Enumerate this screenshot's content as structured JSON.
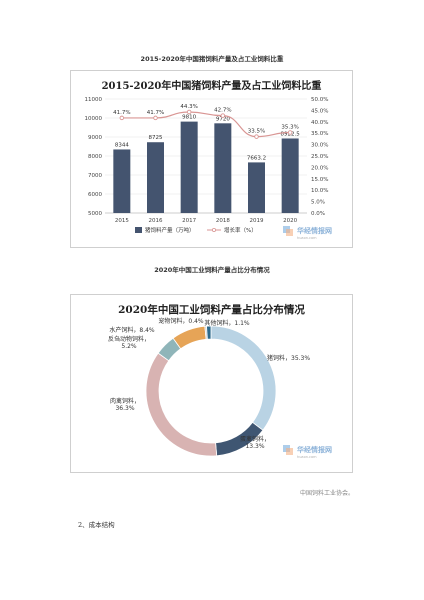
{
  "doc": {
    "caption1": "2015-2020年中国猪饲料产量及占工业饲料比重",
    "caption2": "2020年中国工业饲料产量占比分布情况",
    "source": "中国饲料工业协会。",
    "section": "2、成本结构",
    "watermark": "华经情报网",
    "watermark_sub": "huaon.com"
  },
  "colors": {
    "bar": "#44546f",
    "line": "#d99694",
    "donut": [
      "#b9d3e4",
      "#3f5672",
      "#d8b3b2",
      "#8fb5b9",
      "#e6a457",
      "#c9c9c9",
      "#2d6a8c"
    ]
  },
  "chart_data": [
    {
      "type": "bar",
      "title": "2015-2020年中国猪饲料产量及占工业饲料比重",
      "categories": [
        "2015",
        "2016",
        "2017",
        "2018",
        "2019",
        "2020"
      ],
      "series": [
        {
          "name": "猪饲料产量（万吨）",
          "type": "bar",
          "values": [
            8344,
            8725,
            9810,
            9720,
            7663.2,
            8922.5
          ],
          "labels": [
            "8344",
            "8725",
            "9810",
            "9720",
            "7663.2",
            "8922.5"
          ]
        },
        {
          "name": "增长率（%）",
          "type": "line",
          "axis": "right",
          "values": [
            41.7,
            41.7,
            44.3,
            42.7,
            33.5,
            35.3
          ],
          "labels": [
            "41.7%",
            "41.7%",
            "44.3%",
            "42.7%",
            "33.5%",
            "35.3%"
          ]
        }
      ],
      "ylim": [
        5000,
        11000
      ],
      "yticks": [
        "5000",
        "6000",
        "7000",
        "8000",
        "9000",
        "10000",
        "11000"
      ],
      "y2lim": [
        0,
        50
      ],
      "y2ticks": [
        "0.0%",
        "5.0%",
        "10.0%",
        "15.0%",
        "20.0%",
        "25.0%",
        "30.0%",
        "35.0%",
        "40.0%",
        "45.0%",
        "50.0%"
      ],
      "legend": "bottom",
      "grid": true
    },
    {
      "type": "pie",
      "subtype": "donut",
      "title": "2020年中国工业饲料产量占比分布情况",
      "slices": [
        {
          "label": "猪饲料，35.3%",
          "value": 35.3
        },
        {
          "label": "蛋禽饲料，13.3%",
          "value": 13.3
        },
        {
          "label": "肉禽饲料，36.3%",
          "value": 36.3
        },
        {
          "label": "反刍动物饲料，5.2%",
          "value": 5.2
        },
        {
          "label": "水产饲料，8.4%",
          "value": 8.4
        },
        {
          "label": "宠物饲料，0.4%",
          "value": 0.4
        },
        {
          "label": "其他饲料，1.1%",
          "value": 1.1
        }
      ]
    }
  ]
}
